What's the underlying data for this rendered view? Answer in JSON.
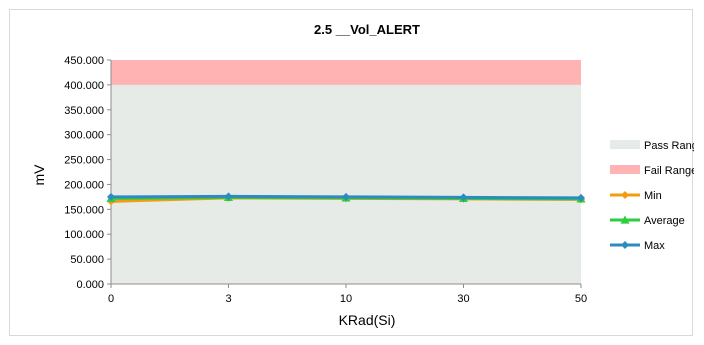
{
  "chart_data": {
    "type": "line",
    "title": "2.5 __Vol_ALERT",
    "xlabel": "KRad(Si)",
    "ylabel": "mV",
    "categories": [
      "0",
      "3",
      "10",
      "30",
      "50"
    ],
    "ylim": [
      0,
      450
    ],
    "yticks": [
      "0.000",
      "50.000",
      "100.000",
      "150.000",
      "200.000",
      "250.000",
      "300.000",
      "350.000",
      "400.000",
      "450.000"
    ],
    "pass_range": [
      0,
      400
    ],
    "fail_range": [
      400,
      450
    ],
    "series": [
      {
        "name": "Min",
        "values": [
          166,
          173,
          172,
          171,
          170
        ],
        "color": "#f39c12"
      },
      {
        "name": "Average",
        "values": [
          172,
          174,
          173,
          172,
          171
        ],
        "color": "#2ecc40"
      },
      {
        "name": "Max",
        "values": [
          175,
          176,
          175,
          174,
          173
        ],
        "color": "#2e8bc0"
      }
    ],
    "legend": [
      {
        "name": "Pass Range",
        "kind": "area",
        "color": "#e6ebe8"
      },
      {
        "name": "Fail Range",
        "kind": "area",
        "color": "#ffb3b3"
      },
      {
        "name": "Min",
        "kind": "line",
        "color": "#f39c12",
        "marker": "diamond"
      },
      {
        "name": "Average",
        "kind": "line",
        "color": "#2ecc40",
        "marker": "triangle"
      },
      {
        "name": "Max",
        "kind": "line",
        "color": "#2e8bc0",
        "marker": "diamond"
      }
    ],
    "legend_position": "right",
    "grid": false
  }
}
